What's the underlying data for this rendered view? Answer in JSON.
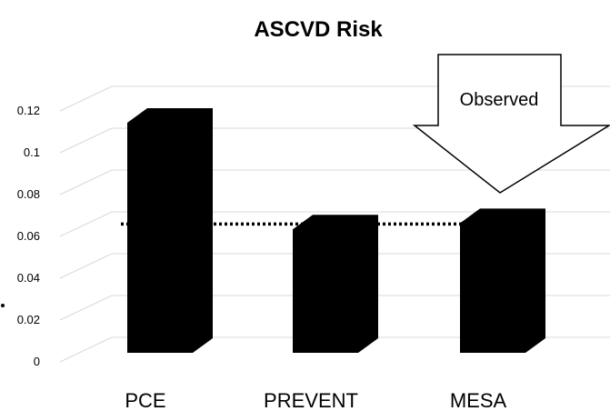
{
  "chart_data": {
    "type": "bar",
    "title": "ASCVD Risk",
    "categories": [
      "PCE",
      "PREVENT",
      "MESA"
    ],
    "values": [
      0.11,
      0.059,
      0.062
    ],
    "ylim": [
      0,
      0.12
    ],
    "yticks": [
      "0",
      "0.02",
      "0.04",
      "0.06",
      "0.08",
      "0.1",
      "0.12"
    ],
    "reference_line": {
      "value": 0.062,
      "style": "dotted"
    },
    "annotation": {
      "text": "Observed",
      "target": "MESA",
      "shape": "down-arrow"
    },
    "grid": true,
    "bar_color": "#000000",
    "grid_color": "#d9d9d9"
  }
}
